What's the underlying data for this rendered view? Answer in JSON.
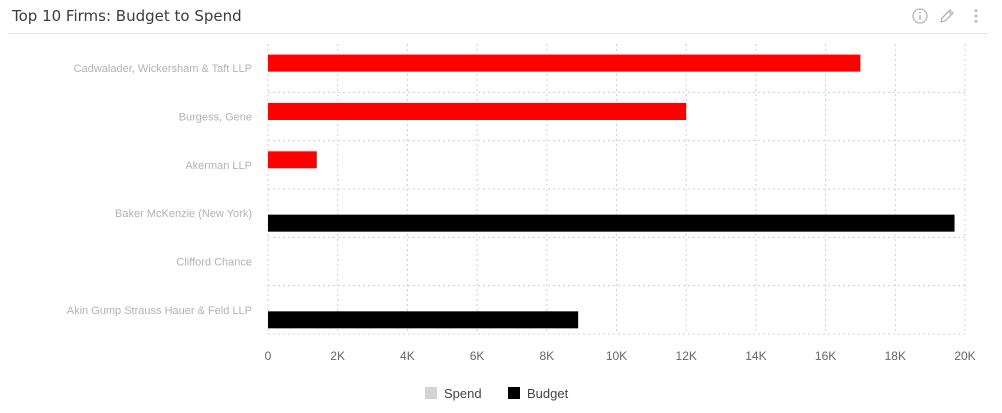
{
  "header": {
    "title": "Top 10 Firms: Budget to Spend",
    "icons": [
      "info-icon",
      "edit-pencil-icon",
      "more-options-icon"
    ]
  },
  "colors": {
    "spend": "#fe0000",
    "budget": "#000000",
    "legend_spend": "#d3d3d3",
    "grid": "#d0d0d0"
  },
  "chart_data": {
    "type": "bar",
    "orientation": "horizontal",
    "title": "Top 10 Firms: Budget to Spend",
    "categories": [
      "Cadwalader, Wickersham & Taft LLP",
      "Burgess, Gene",
      "Akerman LLP",
      "Baker McKenzie (New York)",
      "Clifford Chance",
      "Akin Gump Strauss Hauer & Feld LLP"
    ],
    "series": [
      {
        "name": "Spend",
        "values": [
          17000,
          12000,
          1400,
          null,
          null,
          null
        ]
      },
      {
        "name": "Budget",
        "values": [
          null,
          null,
          null,
          19700,
          null,
          8900
        ]
      }
    ],
    "xlim": [
      0,
      20000
    ],
    "ticks": [
      "0",
      "2K",
      "4K",
      "6K",
      "8K",
      "10K",
      "12K",
      "14K",
      "16K",
      "18K",
      "20K"
    ],
    "grid": true,
    "legend": {
      "position": "bottom",
      "entries": [
        "Spend",
        "Budget"
      ]
    }
  }
}
